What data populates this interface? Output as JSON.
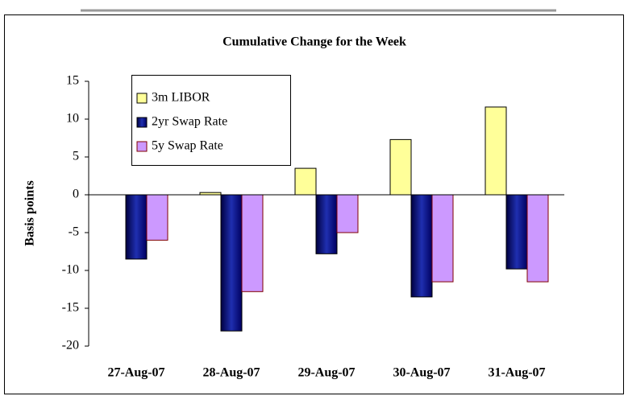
{
  "chart_data": {
    "type": "bar",
    "title": "Cumulative Change for the Week",
    "y_label": "Basis points",
    "categories": [
      "27-Aug-07",
      "28-Aug-07",
      "29-Aug-07",
      "30-Aug-07",
      "31-Aug-07"
    ],
    "series": [
      {
        "name": "3m LIBOR",
        "color": "#ffff99",
        "values": [
          0,
          0.3,
          3.5,
          7.3,
          11.6
        ]
      },
      {
        "name": "2yr Swap Rate",
        "color": "#000080",
        "values": [
          -8.5,
          -18,
          -7.8,
          -13.5,
          -9.8
        ]
      },
      {
        "name": "5y Swap Rate",
        "color": "#cc99ff",
        "values": [
          -6,
          -12.8,
          -5,
          -11.5,
          -11.5
        ]
      }
    ],
    "ylim": [
      -20,
      15
    ],
    "yticks": [
      15,
      10,
      5,
      0,
      -5,
      -10,
      -15,
      -20
    ]
  }
}
